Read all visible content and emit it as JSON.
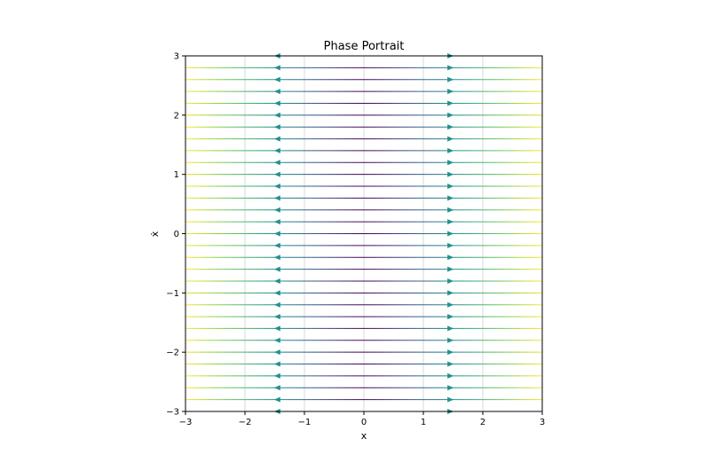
{
  "chart_data": {
    "type": "streamplot",
    "title": "Phase Portrait",
    "xlabel": "x",
    "ylabel": "ẋ",
    "xlim": [
      -3,
      3
    ],
    "ylim": [
      -3,
      3
    ],
    "xticks": [
      -3,
      -2,
      -1,
      0,
      1,
      2,
      3
    ],
    "yticks": [
      -3,
      -2,
      -1,
      0,
      1,
      2,
      3
    ],
    "xtick_labels": [
      "−3",
      "−2",
      "−1",
      "0",
      "1",
      "2",
      "3"
    ],
    "ytick_labels": [
      "−3",
      "−2",
      "−1",
      "0",
      "1",
      "2",
      "3"
    ],
    "grid": true,
    "colormap": "viridis",
    "stream_y": [
      -3.0,
      -2.8,
      -2.6,
      -2.4,
      -2.2,
      -2.0,
      -1.8,
      -1.6,
      -1.4,
      -1.2,
      -1.0,
      -0.8,
      -0.6,
      -0.4,
      -0.2,
      0.0,
      0.2,
      0.4,
      0.6,
      0.8,
      1.0,
      1.2,
      1.4,
      1.6,
      1.8,
      2.0,
      2.2,
      2.4,
      2.6,
      2.8,
      3.0
    ],
    "arrow_x": [
      -1.45,
      1.45
    ],
    "flow_direction": "away from x = 0 (horizontal)",
    "colors": {
      "grid": "#b0b0b0",
      "arrow": "#21918c",
      "axes": "#000000"
    }
  }
}
